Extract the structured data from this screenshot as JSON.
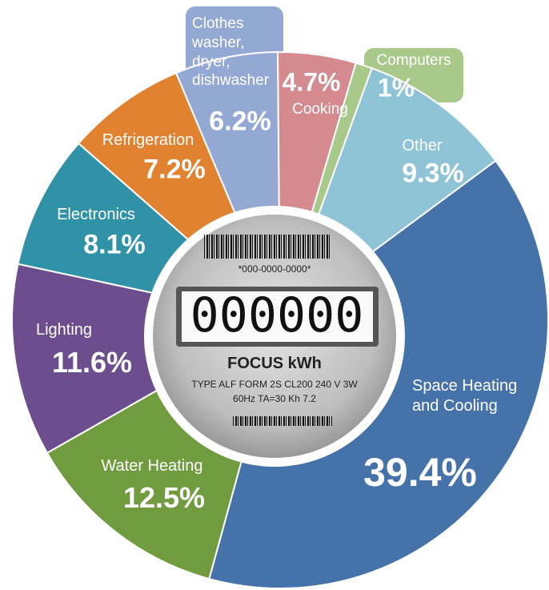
{
  "chart_data": {
    "type": "pie",
    "categories": [
      "Space Heating and Cooling",
      "Water Heating",
      "Lighting",
      "Electronics",
      "Refrigeration",
      "Clothes washer, dryer, dishwasher",
      "Cooking",
      "Computers",
      "Other"
    ],
    "values": [
      39.4,
      12.5,
      11.6,
      8.1,
      7.2,
      6.2,
      4.7,
      1,
      9.3
    ],
    "value_labels": [
      "39.4%",
      "12.5%",
      "11.6%",
      "8.1%",
      "7.2%",
      "6.2%",
      "4.7%",
      "1%",
      "9.3%"
    ],
    "colors": [
      "#4672aa",
      "#719b3f",
      "#6c4e8e",
      "#2f92a7",
      "#e0822f",
      "#93a9d4",
      "#d48a8e",
      "#a9c98b",
      "#8fc3d6"
    ],
    "meter": {
      "serial": "*000-0000-0000*",
      "display": "000000",
      "name": "FOCUS kWh",
      "specs": [
        "TYPE ALF FORM 2S CL200 240 V 3W",
        "60Hz TA=30 Kh 7.2"
      ]
    }
  }
}
